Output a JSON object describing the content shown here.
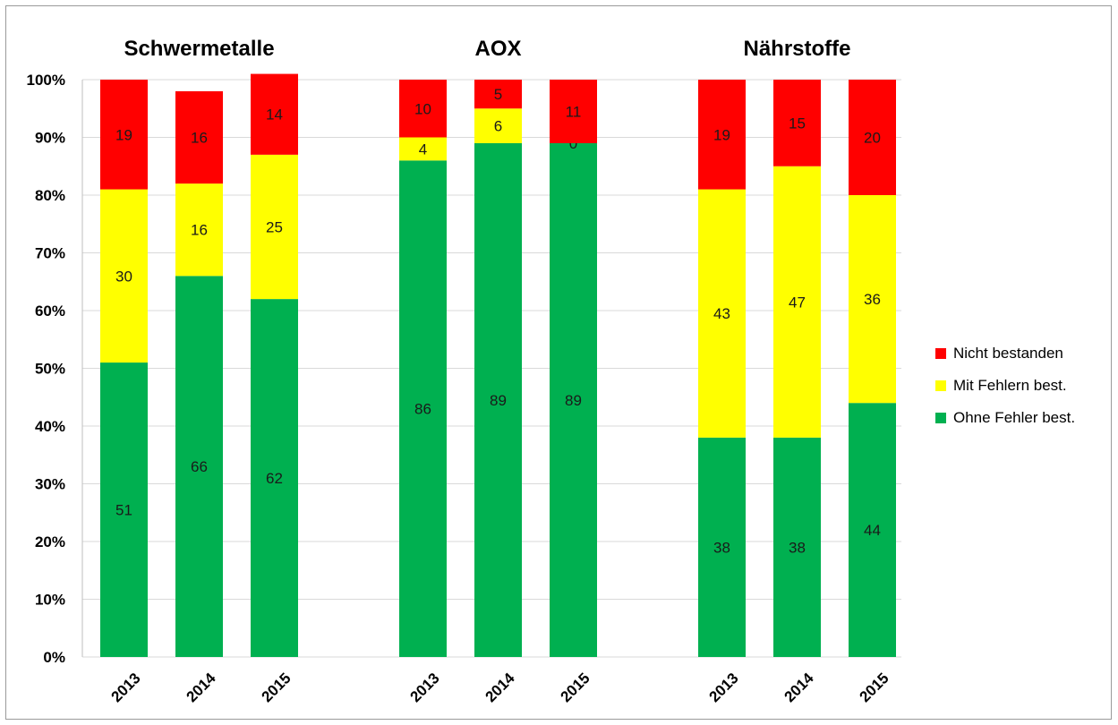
{
  "chart_data": {
    "type": "bar",
    "stacked": true,
    "percent_stacked": true,
    "ylim": [
      0,
      100
    ],
    "y_ticks": [
      "0%",
      "10%",
      "20%",
      "30%",
      "40%",
      "50%",
      "60%",
      "70%",
      "80%",
      "90%",
      "100%"
    ],
    "grid": true,
    "legend_position": "right",
    "groups": [
      {
        "title": "Schwermetalle",
        "categories": [
          "2013",
          "2014",
          "2015"
        ],
        "series": [
          {
            "name": "Ohne Fehler best.",
            "values": [
              51,
              66,
              62
            ]
          },
          {
            "name": "Mit Fehlern best.",
            "values": [
              30,
              16,
              25
            ]
          },
          {
            "name": "Nicht bestanden",
            "values": [
              19,
              16,
              14
            ]
          }
        ]
      },
      {
        "title": "AOX",
        "categories": [
          "2013",
          "2014",
          "2015"
        ],
        "series": [
          {
            "name": "Ohne Fehler best.",
            "values": [
              86,
              89,
              89
            ]
          },
          {
            "name": "Mit Fehlern best.",
            "values": [
              4,
              6,
              0
            ]
          },
          {
            "name": "Nicht bestanden",
            "values": [
              10,
              5,
              11
            ]
          }
        ]
      },
      {
        "title": "Nährstoffe",
        "categories": [
          "2013",
          "2014",
          "2015"
        ],
        "series": [
          {
            "name": "Ohne Fehler best.",
            "values": [
              38,
              38,
              44
            ]
          },
          {
            "name": "Mit Fehlern best.",
            "values": [
              43,
              47,
              36
            ]
          },
          {
            "name": "Nicht bestanden",
            "values": [
              19,
              15,
              20
            ]
          }
        ]
      }
    ],
    "legend": [
      {
        "name": "Nicht bestanden",
        "color": "#ff0000"
      },
      {
        "name": "Mit Fehlern best.",
        "color": "#ffff00"
      },
      {
        "name": "Ohne Fehler best.",
        "color": "#00b050"
      }
    ],
    "colors": {
      "Ohne Fehler best.": "#00b050",
      "Mit Fehlern best.": "#ffff00",
      "Nicht bestanden": "#ff0000"
    }
  }
}
